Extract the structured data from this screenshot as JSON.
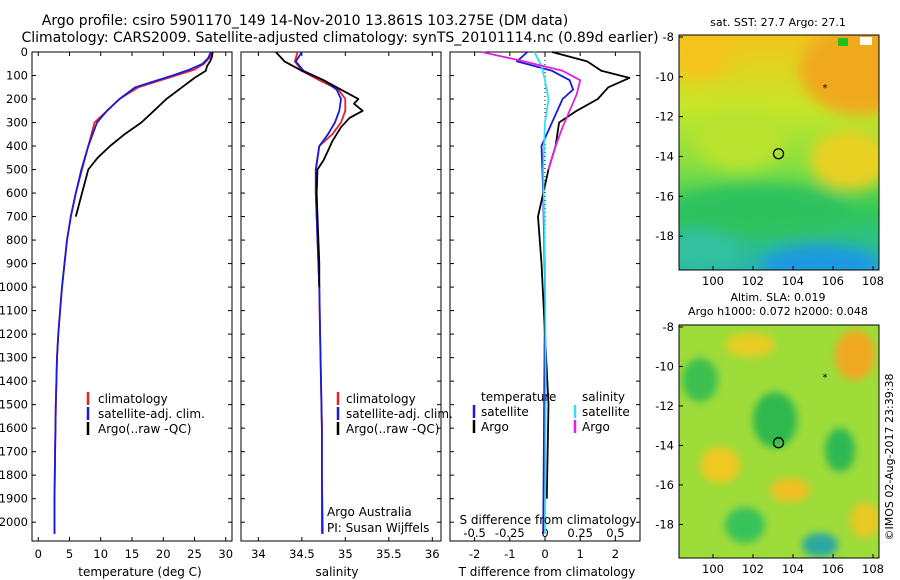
{
  "header": {
    "line1": "Argo profile: csiro 5901170_149 14-Nov-2010 13.861S 103.275E (DM data)",
    "line2": "Climatology: CARS2009. Satellite-adjusted climatology: synTS_20101114.nc (0.89d earlier)"
  },
  "colors": {
    "climatology": "#e8202a",
    "satellite": "#1a1adc",
    "argo": "#000000",
    "sal_satellite": "#30e0f0",
    "sal_argo": "#e020e0"
  },
  "footer": {
    "credit": "©IMOS 02-Aug-2017 23:39:38",
    "argo_australia": "Argo Australia",
    "pi": "PI: Susan Wijffels"
  },
  "chart_data": [
    {
      "id": "temperature",
      "type": "line",
      "xlabel": "temperature (deg C)",
      "ylabel": "",
      "xlim": [
        -1,
        31
      ],
      "ylim": [
        2080,
        0
      ],
      "xticks": [
        0,
        5,
        10,
        15,
        20,
        25,
        30
      ],
      "yticks": [
        0,
        100,
        200,
        300,
        400,
        500,
        600,
        700,
        800,
        900,
        1000,
        1100,
        1200,
        1300,
        1400,
        1500,
        1600,
        1700,
        1800,
        1900,
        2000
      ],
      "legend": {
        "position": "lower-center",
        "items": [
          "climatology",
          "satellite-adj. clim.",
          "Argo(..raw -QC)"
        ]
      },
      "series": [
        {
          "name": "climatology",
          "color": "#e8202a",
          "x": [
            27.8,
            27.4,
            26.5,
            25,
            22,
            19,
            16,
            13,
            11,
            9,
            8,
            7,
            6,
            5.2,
            4.6,
            4.2,
            3.8,
            3.5,
            3.2,
            3.0,
            2.9,
            2.8,
            2.7,
            2.6,
            2.6
          ],
          "y": [
            0,
            25,
            50,
            75,
            100,
            125,
            150,
            200,
            250,
            300,
            400,
            500,
            600,
            700,
            800,
            900,
            1000,
            1100,
            1200,
            1300,
            1400,
            1500,
            1700,
            1900,
            2050
          ]
        },
        {
          "name": "satellite-adj. clim.",
          "color": "#1a1adc",
          "x": [
            27.6,
            27.2,
            26.3,
            24.2,
            21.5,
            18.5,
            15.5,
            13,
            11,
            9.4,
            8,
            6.9,
            6,
            5.2,
            4.6,
            4.2,
            3.8,
            3.5,
            3.2,
            3.0,
            2.9,
            2.8,
            2.7,
            2.6,
            2.6
          ],
          "y": [
            0,
            25,
            50,
            75,
            100,
            125,
            150,
            200,
            250,
            300,
            400,
            500,
            600,
            700,
            800,
            900,
            1000,
            1100,
            1200,
            1300,
            1400,
            1500,
            1700,
            1900,
            2050
          ]
        },
        {
          "name": "Argo(..raw -QC)",
          "color": "#000000",
          "x": [
            27.9,
            27.8,
            27.5,
            27,
            26.8,
            25,
            23,
            20.5,
            18.5,
            16.5,
            13.8,
            11.5,
            9.5,
            8,
            7,
            6
          ],
          "y": [
            0,
            20,
            40,
            60,
            80,
            110,
            150,
            200,
            250,
            300,
            350,
            400,
            450,
            500,
            600,
            700
          ]
        }
      ]
    },
    {
      "id": "salinity",
      "type": "line",
      "xlabel": "salinity",
      "ylabel": "",
      "xlim": [
        33.8,
        36.1
      ],
      "ylim": [
        2080,
        0
      ],
      "xticks": [
        34,
        34.5,
        35,
        35.5,
        36
      ],
      "legend": {
        "position": "lower-right",
        "items": [
          "climatology",
          "satellite-adj. clim.",
          "Argo(..raw -QC)"
        ]
      },
      "series": [
        {
          "name": "climatology",
          "color": "#e8202a",
          "x": [
            34.45,
            34.42,
            34.5,
            34.7,
            34.92,
            35.0,
            35.0,
            34.95,
            34.85,
            34.7,
            34.66,
            34.66,
            34.67,
            34.68,
            34.69,
            34.7,
            34.71,
            34.72,
            34.73,
            34.73,
            34.73
          ],
          "y": [
            0,
            40,
            80,
            120,
            160,
            200,
            250,
            300,
            350,
            400,
            500,
            600,
            700,
            800,
            900,
            1000,
            1200,
            1400,
            1600,
            1800,
            2050
          ]
        },
        {
          "name": "satellite-adj. clim.",
          "color": "#1a1adc",
          "x": [
            34.5,
            34.43,
            34.52,
            34.75,
            34.9,
            34.95,
            34.93,
            34.88,
            34.8,
            34.7,
            34.66,
            34.66,
            34.67,
            34.68,
            34.69,
            34.7,
            34.71,
            34.72,
            34.73,
            34.73,
            34.74
          ],
          "y": [
            0,
            40,
            80,
            120,
            160,
            200,
            250,
            300,
            350,
            400,
            500,
            600,
            700,
            800,
            900,
            1000,
            1200,
            1400,
            1600,
            1800,
            2050
          ]
        },
        {
          "name": "Argo(..raw -QC)",
          "color": "#000000",
          "x": [
            34.2,
            34.3,
            34.5,
            34.75,
            34.9,
            35.05,
            35.15,
            35.1,
            35.2,
            35.05,
            34.95,
            34.85,
            34.8,
            34.75,
            34.68,
            34.67,
            34.68,
            34.69,
            34.7,
            34.7
          ],
          "y": [
            0,
            40,
            80,
            120,
            150,
            180,
            200,
            220,
            250,
            280,
            320,
            380,
            420,
            460,
            500,
            600,
            700,
            800,
            900,
            1000
          ]
        }
      ]
    },
    {
      "id": "differences",
      "type": "line",
      "xlabel": "T difference from climatology",
      "xlabel_top": "S difference from climatology",
      "xlim": [
        -2.7,
        2.7
      ],
      "ylim": [
        2080,
        0
      ],
      "xticks": [
        -2,
        -1,
        0,
        1,
        2
      ],
      "xticks_s": [
        -0.5,
        -0.25,
        0,
        0.25,
        0.5
      ],
      "legend": {
        "position": "lower-center",
        "headers": [
          "temperature",
          "salinity"
        ],
        "items": [
          "satellite",
          "Argo",
          "satellite",
          "Argo"
        ]
      },
      "series": [
        {
          "name": "temperature satellite",
          "color": "#1a1adc",
          "x": [
            -0.5,
            -0.8,
            0.2,
            0.7,
            0.8,
            0.5,
            0.2,
            -0.1,
            -0.05,
            0,
            -0.05
          ],
          "y": [
            0,
            40,
            80,
            120,
            160,
            200,
            300,
            400,
            600,
            1000,
            2050
          ]
        },
        {
          "name": "temperature Argo",
          "color": "#000000",
          "x": [
            0.2,
            1.2,
            1.6,
            2.4,
            1.8,
            1.5,
            0.9,
            0.4,
            0.3,
            0.1,
            -0.2,
            -0.1,
            0,
            0.1,
            0.05
          ],
          "y": [
            0,
            40,
            80,
            110,
            150,
            200,
            250,
            300,
            400,
            500,
            700,
            900,
            1200,
            1500,
            1900
          ]
        },
        {
          "name": "salinity satellite",
          "color": "#30e0f0",
          "x": [
            -0.3,
            -0.1,
            0,
            0.1,
            0,
            -0.05,
            0,
            0.02,
            0
          ],
          "y": [
            0,
            60,
            120,
            200,
            300,
            500,
            900,
            1400,
            2050
          ]
        },
        {
          "name": "salinity Argo",
          "color": "#e020e0",
          "x": [
            -1.8,
            -0.6,
            0.5,
            1.0,
            0.9,
            0.7,
            0.5,
            0.3,
            0.1
          ],
          "y": [
            0,
            40,
            80,
            120,
            180,
            250,
            320,
            400,
            500
          ]
        }
      ]
    },
    {
      "id": "sst_map",
      "type": "heatmap",
      "title": "sat. SST: 27.7 Argo: 27.1",
      "xlim": [
        98.3,
        108.3
      ],
      "ylim": [
        -19.7,
        -7.9
      ],
      "xticks": [
        100,
        102,
        104,
        106,
        108
      ],
      "yticks": [
        -8,
        -10,
        -12,
        -14,
        -16,
        -18
      ],
      "argo_position": [
        103.275,
        -13.861
      ],
      "marker_star": [
        105.6,
        -10.5
      ]
    },
    {
      "id": "sla_map",
      "type": "heatmap",
      "title": "Altim. SLA: 0.019",
      "subtitle": "Argo h1000: 0.072 h2000: 0.048",
      "xlim": [
        98.3,
        108.3
      ],
      "ylim": [
        -19.7,
        -7.9
      ],
      "xticks": [
        100,
        102,
        104,
        106,
        108
      ],
      "yticks": [
        -8,
        -10,
        -12,
        -14,
        -16,
        -18
      ],
      "argo_position": [
        103.275,
        -13.861
      ],
      "marker_star": [
        105.6,
        -10.5
      ]
    }
  ]
}
